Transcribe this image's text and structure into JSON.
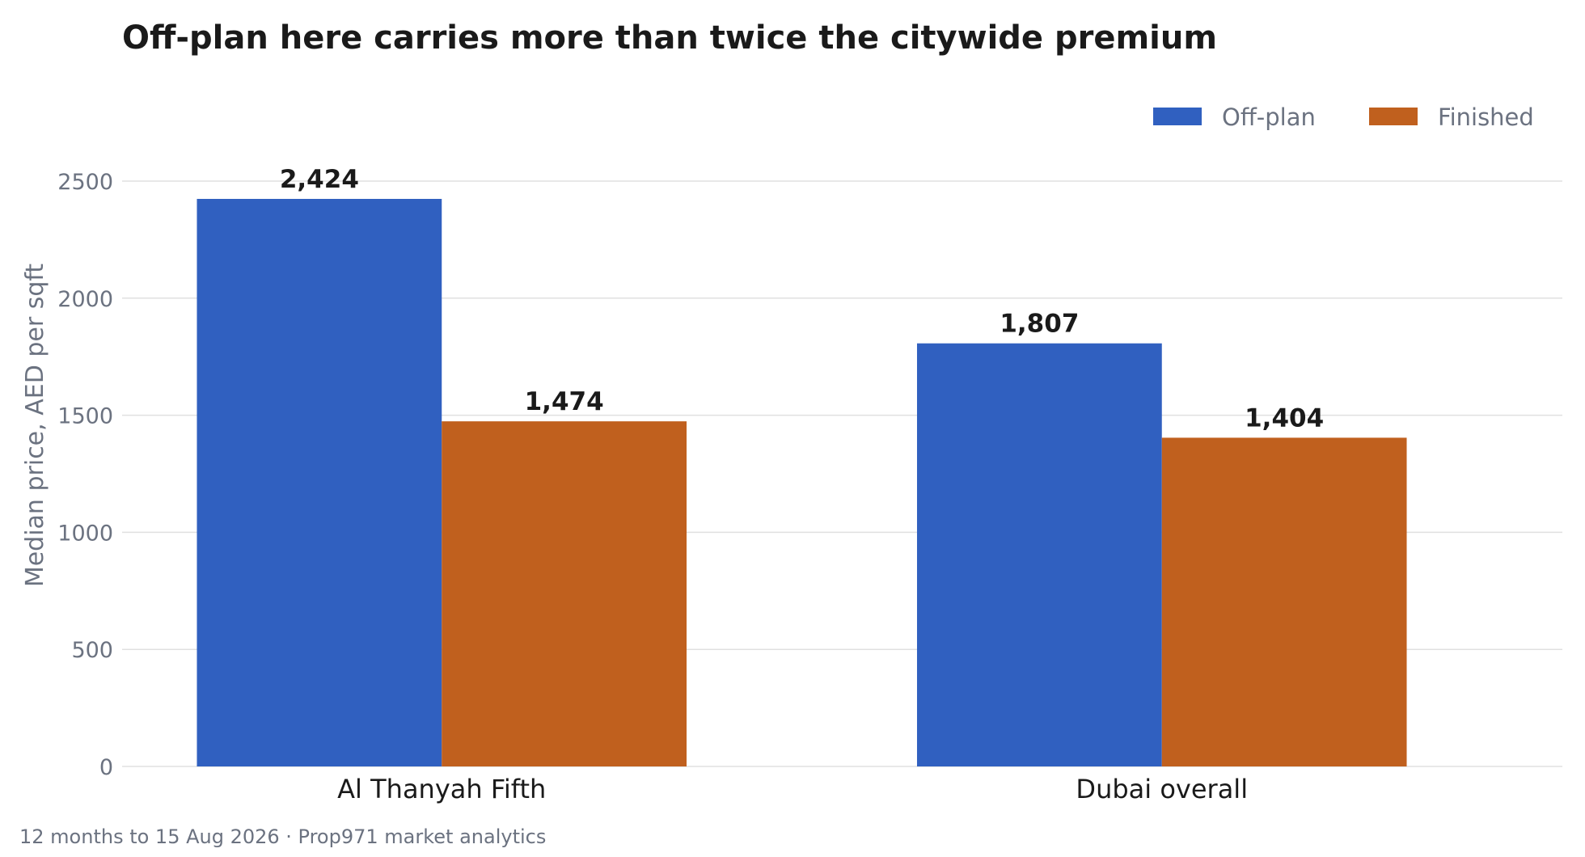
{
  "chart_data": {
    "type": "bar",
    "title": "Off-plan here carries more than twice the citywide premium",
    "xlabel": "",
    "ylabel": "Median price, AED per sqft",
    "categories": [
      "Al Thanyah Fifth",
      "Dubai overall"
    ],
    "series": [
      {
        "name": "Off-plan",
        "color": "#3060c0",
        "values": [
          2424,
          1807
        ],
        "labels": [
          "2,424",
          "1,807"
        ]
      },
      {
        "name": "Finished",
        "color": "#c0601e",
        "values": [
          1474,
          1404
        ],
        "labels": [
          "1,474",
          "1,404"
        ]
      }
    ],
    "ylim": [
      0,
      2500
    ],
    "yticks": [
      0,
      500,
      1000,
      1500,
      2000,
      2500
    ],
    "grid": true,
    "legend_position": "top-right"
  },
  "footer": "12 months to 15 Aug 2026  ·  Prop971 market analytics"
}
